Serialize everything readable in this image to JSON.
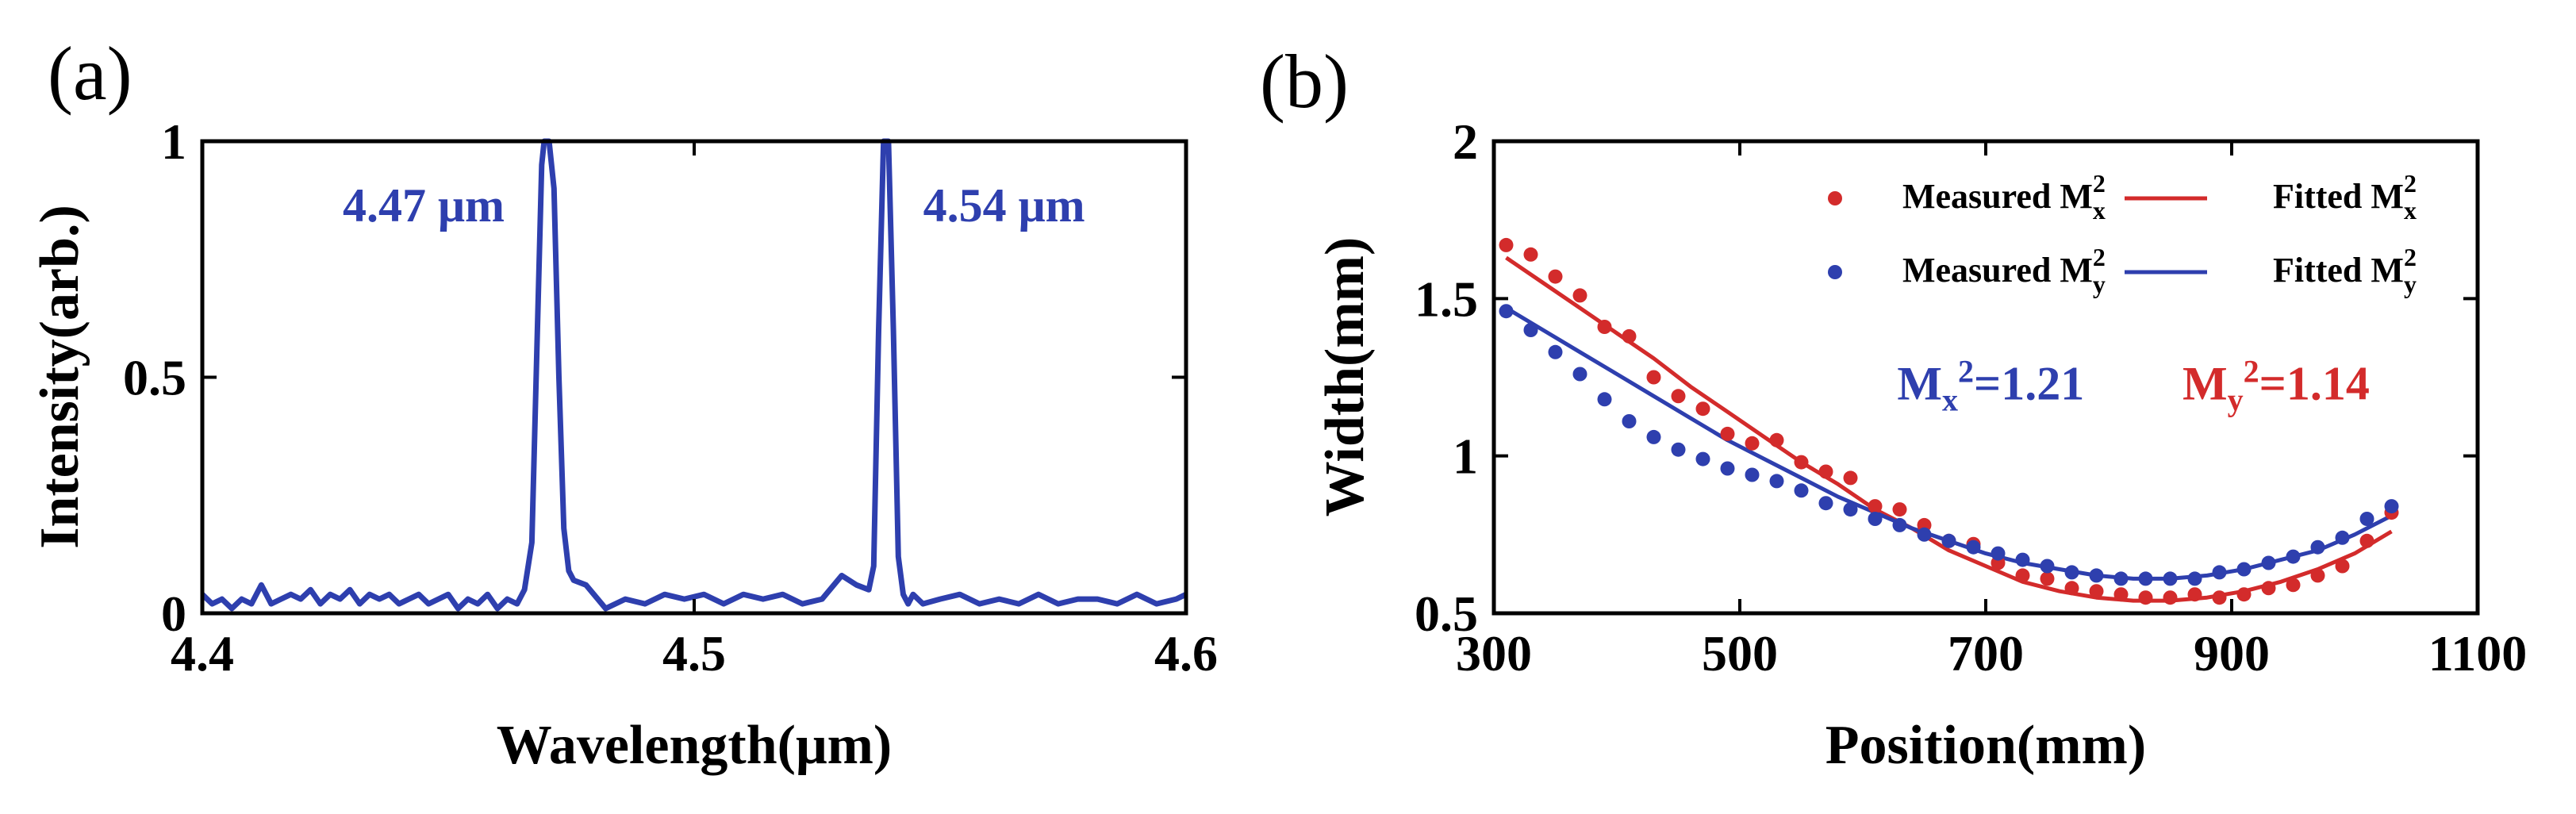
{
  "colors": {
    "red": "#d32b2b",
    "blue": "#2e3fae",
    "axis": "#000000"
  },
  "chart_data": [
    {
      "panel_label": "(a)",
      "type": "line",
      "xlabel": "Wavelength(μm)",
      "ylabel": "Intensity(arb.)",
      "xlim": [
        4.4,
        4.6
      ],
      "ylim": [
        0,
        1
      ],
      "xticks": [
        4.4,
        4.5,
        4.6
      ],
      "xtick_labels": [
        "4.4",
        "4.5",
        "4.6"
      ],
      "yticks": [
        0,
        0.5,
        1
      ],
      "ytick_labels": [
        "0",
        "0.5",
        "1"
      ],
      "annotations": [
        {
          "text": "4.47 μm",
          "x": 4.445,
          "y": 0.83
        },
        {
          "text": "4.54 μm",
          "x": 4.563,
          "y": 0.83
        }
      ],
      "series": [
        {
          "name": "spectrum",
          "color": "#2e3fae",
          "x": [
            4.4,
            4.402,
            4.404,
            4.406,
            4.408,
            4.41,
            4.412,
            4.414,
            4.416,
            4.418,
            4.42,
            4.422,
            4.424,
            4.426,
            4.428,
            4.43,
            4.432,
            4.434,
            4.436,
            4.438,
            4.44,
            4.442,
            4.444,
            4.446,
            4.448,
            4.45,
            4.452,
            4.454,
            4.456,
            4.458,
            4.46,
            4.462,
            4.464,
            4.4655,
            4.467,
            4.468,
            4.469,
            4.4695,
            4.4705,
            4.4715,
            4.4725,
            4.4735,
            4.4745,
            4.4755,
            4.478,
            4.482,
            4.486,
            4.49,
            4.494,
            4.498,
            4.502,
            4.506,
            4.51,
            4.514,
            4.518,
            4.522,
            4.526,
            4.53,
            4.533,
            4.5355,
            4.5365,
            4.5375,
            4.5385,
            4.5395,
            4.5405,
            4.5415,
            4.5425,
            4.5435,
            4.5445,
            4.5465,
            4.55,
            4.554,
            4.558,
            4.562,
            4.566,
            4.57,
            4.574,
            4.578,
            4.582,
            4.586,
            4.59,
            4.594,
            4.598,
            4.6
          ],
          "y": [
            0.04,
            0.02,
            0.03,
            0.01,
            0.03,
            0.02,
            0.06,
            0.02,
            0.03,
            0.04,
            0.03,
            0.05,
            0.02,
            0.04,
            0.03,
            0.05,
            0.02,
            0.04,
            0.03,
            0.04,
            0.02,
            0.03,
            0.04,
            0.02,
            0.03,
            0.04,
            0.01,
            0.03,
            0.02,
            0.04,
            0.01,
            0.03,
            0.02,
            0.05,
            0.15,
            0.55,
            0.95,
            1.0,
            1.0,
            0.9,
            0.5,
            0.18,
            0.09,
            0.07,
            0.06,
            0.01,
            0.03,
            0.02,
            0.04,
            0.03,
            0.04,
            0.02,
            0.04,
            0.03,
            0.04,
            0.02,
            0.03,
            0.08,
            0.06,
            0.05,
            0.1,
            0.6,
            1.0,
            1.0,
            0.6,
            0.12,
            0.04,
            0.02,
            0.04,
            0.02,
            0.03,
            0.04,
            0.02,
            0.03,
            0.02,
            0.04,
            0.02,
            0.03,
            0.03,
            0.02,
            0.04,
            0.02,
            0.03,
            0.04
          ]
        }
      ]
    },
    {
      "panel_label": "(b)",
      "type": "scatter",
      "xlabel": "Position(mm)",
      "ylabel": "Width(mm)",
      "xlim": [
        300,
        1100
      ],
      "ylim": [
        0.5,
        2
      ],
      "xticks": [
        300,
        500,
        700,
        900,
        1100
      ],
      "xtick_labels": [
        "300",
        "500",
        "700",
        "900",
        "1100"
      ],
      "yticks": [
        0.5,
        1,
        1.5,
        2
      ],
      "ytick_labels": [
        "0.5",
        "1",
        "1.5",
        "2"
      ],
      "legend_position": "top-right",
      "legend": [
        {
          "name": "Measured M",
          "sub": "x",
          "sup": "2",
          "kind": "dot",
          "color": "#d32b2b"
        },
        {
          "name": "Fitted M",
          "sub": "x",
          "sup": "2",
          "kind": "line",
          "color": "#d32b2b"
        },
        {
          "name": "Measured M",
          "sub": "y",
          "sup": "2",
          "kind": "dot",
          "color": "#2e3fae"
        },
        {
          "name": "Fitted M",
          "sub": "y",
          "sup": "2",
          "kind": "line",
          "color": "#2e3fae"
        }
      ],
      "m2_annotations": [
        {
          "base": "M",
          "sub": "x",
          "sup": "2",
          "value": "=1.21",
          "color": "#2e3fae",
          "x": 628,
          "y": 1.18
        },
        {
          "base": "M",
          "sub": "y",
          "sup": "2",
          "value": "=1.14",
          "color": "#d32b2b",
          "x": 860,
          "y": 1.18
        }
      ],
      "series": [
        {
          "name": "Measured Mx2",
          "kind": "scatter",
          "color": "#d32b2b",
          "x": [
            310,
            330,
            350,
            370,
            390,
            410,
            430,
            450,
            470,
            490,
            510,
            530,
            550,
            570,
            590,
            610,
            630,
            650,
            670,
            690,
            710,
            730,
            750,
            770,
            790,
            810,
            830,
            850,
            870,
            890,
            910,
            930,
            950,
            970,
            990,
            1010,
            1030
          ],
          "y": [
            1.67,
            1.64,
            1.57,
            1.51,
            1.41,
            1.38,
            1.25,
            1.19,
            1.15,
            1.07,
            1.04,
            1.05,
            0.98,
            0.95,
            0.93,
            0.84,
            0.83,
            0.78,
            0.73,
            0.72,
            0.66,
            0.62,
            0.61,
            0.58,
            0.57,
            0.56,
            0.55,
            0.55,
            0.56,
            0.55,
            0.56,
            0.58,
            0.59,
            0.62,
            0.65,
            0.73,
            0.82
          ]
        },
        {
          "name": "Measured My2",
          "kind": "scatter",
          "color": "#2e3fae",
          "x": [
            310,
            330,
            350,
            370,
            390,
            410,
            430,
            450,
            470,
            490,
            510,
            530,
            550,
            570,
            590,
            610,
            630,
            650,
            670,
            690,
            710,
            730,
            750,
            770,
            790,
            810,
            830,
            850,
            870,
            890,
            910,
            930,
            950,
            970,
            990,
            1010,
            1030
          ],
          "y": [
            1.46,
            1.4,
            1.33,
            1.26,
            1.18,
            1.11,
            1.06,
            1.02,
            0.99,
            0.96,
            0.94,
            0.92,
            0.89,
            0.85,
            0.83,
            0.8,
            0.78,
            0.75,
            0.73,
            0.71,
            0.69,
            0.67,
            0.65,
            0.63,
            0.62,
            0.61,
            0.61,
            0.61,
            0.61,
            0.63,
            0.64,
            0.66,
            0.68,
            0.71,
            0.74,
            0.8,
            0.84
          ]
        },
        {
          "name": "Fitted Mx2",
          "kind": "line",
          "color": "#d32b2b",
          "x": [
            310,
            340,
            370,
            400,
            430,
            460,
            490,
            520,
            550,
            580,
            610,
            640,
            670,
            700,
            730,
            760,
            790,
            820,
            850,
            880,
            910,
            940,
            970,
            1000,
            1030
          ],
          "y": [
            1.63,
            1.55,
            1.47,
            1.39,
            1.31,
            1.22,
            1.14,
            1.06,
            0.98,
            0.91,
            0.83,
            0.77,
            0.7,
            0.65,
            0.6,
            0.57,
            0.55,
            0.54,
            0.54,
            0.55,
            0.57,
            0.6,
            0.64,
            0.69,
            0.76
          ]
        },
        {
          "name": "Fitted My2",
          "kind": "line",
          "color": "#2e3fae",
          "x": [
            310,
            340,
            370,
            400,
            430,
            460,
            490,
            520,
            550,
            580,
            610,
            640,
            670,
            700,
            730,
            760,
            790,
            820,
            850,
            880,
            910,
            940,
            970,
            1000,
            1030
          ],
          "y": [
            1.47,
            1.4,
            1.33,
            1.26,
            1.19,
            1.12,
            1.05,
            0.99,
            0.93,
            0.87,
            0.82,
            0.77,
            0.73,
            0.69,
            0.66,
            0.64,
            0.62,
            0.61,
            0.61,
            0.62,
            0.64,
            0.67,
            0.7,
            0.75,
            0.81
          ]
        }
      ]
    }
  ]
}
